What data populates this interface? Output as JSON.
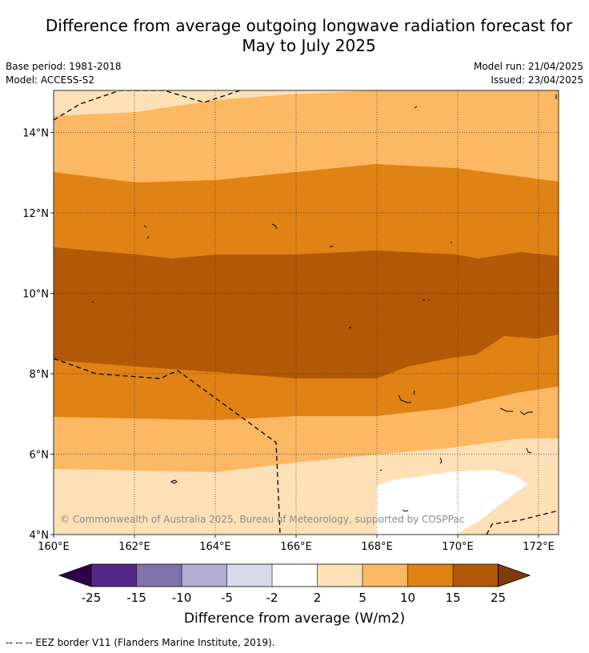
{
  "title_line1": "Difference from average outgoing longwave radiation forecast for",
  "title_line2": "May to July 2025",
  "meta_left": {
    "base_period": "Base period: 1981-2018",
    "model": "Model: ACCESS-S2"
  },
  "meta_right": {
    "model_run": "Model run: 21/04/2025",
    "issued": "Issued: 23/04/2025"
  },
  "map": {
    "lon_ticks": [
      "160°E",
      "162°E",
      "164°E",
      "166°E",
      "168°E",
      "170°E",
      "172°E"
    ],
    "lat_ticks": [
      "4°N",
      "6°N",
      "8°N",
      "10°N",
      "12°N",
      "14°N"
    ],
    "copyright": "© Commonwealth of Australia 2025, Bureau of Meteorology, supported by COSPPac"
  },
  "colorbar": {
    "tick_labels": [
      "-25",
      "-15",
      "-10",
      "-5",
      "-2",
      "2",
      "5",
      "10",
      "15",
      "25"
    ],
    "colors": [
      "#2d004b",
      "#542788",
      "#8073ac",
      "#b2abd2",
      "#d8daeb",
      "#ffffff",
      "#fee0b6",
      "#fdb863",
      "#e08214",
      "#b35806",
      "#7f3b08"
    ],
    "label": "Difference from average (W/m2)"
  },
  "footer": "--  --  -- EEZ border V11 (Flanders Marine Institute, 2019)."
}
